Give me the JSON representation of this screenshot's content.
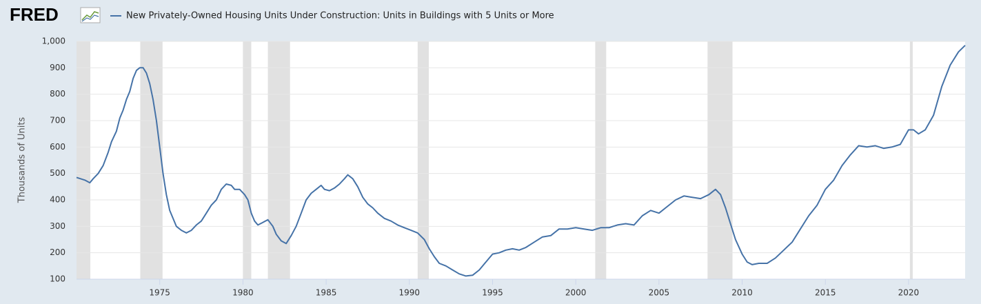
{
  "logo": "FRED",
  "chart_data": {
    "type": "line",
    "y_label": "Thousands of Units",
    "series": [
      {
        "name": "New Privately-Owned Housing Units Under Construction: Units in Buildings with 5 Units or More",
        "color": "#4572a7",
        "values": [
          485,
          475,
          465,
          480,
          500,
          530,
          580,
          620,
          660,
          710,
          740,
          780,
          810,
          860,
          890,
          900,
          900,
          880,
          840,
          780,
          700,
          600,
          500,
          420,
          360,
          330,
          300,
          285,
          275,
          285,
          305,
          320,
          350,
          380,
          400,
          440,
          460,
          455,
          440,
          440,
          420,
          400,
          350,
          320,
          305,
          315,
          325,
          300,
          270,
          245,
          235,
          265,
          300,
          350,
          400,
          425,
          440,
          455,
          440,
          435,
          445,
          460,
          480,
          495,
          480,
          450,
          410,
          385,
          370,
          350,
          330,
          320,
          305,
          295,
          285,
          275,
          250,
          215,
          185,
          160,
          150,
          135,
          120,
          112,
          115,
          135,
          165,
          195,
          200,
          210,
          215,
          210,
          220,
          240,
          260,
          265,
          290,
          290,
          295,
          290,
          285,
          295,
          295,
          305,
          310,
          305,
          340,
          360,
          350,
          375,
          400,
          415,
          410,
          405,
          420,
          440,
          420,
          370,
          310,
          250,
          195,
          165,
          155,
          160,
          160,
          180,
          210,
          240,
          290,
          340,
          380,
          440,
          475,
          530,
          570,
          605,
          600,
          605,
          595,
          600,
          610,
          665,
          665,
          650,
          665,
          720,
          830,
          910,
          960,
          985
        ]
      }
    ],
    "x": [
      1970.0,
      1970.5,
      1970.8,
      1971.0,
      1971.3,
      1971.6,
      1971.9,
      1972.1,
      1972.4,
      1972.6,
      1972.8,
      1973.0,
      1973.2,
      1973.4,
      1973.6,
      1973.8,
      1974.0,
      1974.2,
      1974.4,
      1974.6,
      1974.8,
      1975.0,
      1975.2,
      1975.4,
      1975.6,
      1975.8,
      1976.0,
      1976.3,
      1976.6,
      1976.9,
      1977.2,
      1977.5,
      1977.8,
      1978.1,
      1978.4,
      1978.7,
      1979.0,
      1979.3,
      1979.5,
      1979.8,
      1980.1,
      1980.3,
      1980.5,
      1980.7,
      1980.9,
      1981.2,
      1981.5,
      1981.8,
      1982.0,
      1982.3,
      1982.6,
      1982.9,
      1983.2,
      1983.5,
      1983.8,
      1984.1,
      1984.4,
      1984.7,
      1984.9,
      1985.2,
      1985.5,
      1985.8,
      1986.1,
      1986.3,
      1986.6,
      1986.9,
      1987.2,
      1987.5,
      1987.8,
      1988.1,
      1988.5,
      1988.9,
      1989.3,
      1989.7,
      1990.1,
      1990.5,
      1990.9,
      1991.2,
      1991.5,
      1991.8,
      1992.2,
      1992.6,
      1993.0,
      1993.4,
      1993.8,
      1994.2,
      1994.6,
      1995.0,
      1995.4,
      1995.8,
      1996.2,
      1996.6,
      1997.0,
      1997.5,
      1998.0,
      1998.5,
      1999.0,
      1999.5,
      2000.0,
      2000.5,
      2001.0,
      2001.5,
      2002.0,
      2002.5,
      2003.0,
      2003.5,
      2004.0,
      2004.5,
      2005.0,
      2005.5,
      2006.0,
      2006.5,
      2007.0,
      2007.5,
      2008.0,
      2008.4,
      2008.7,
      2009.0,
      2009.3,
      2009.6,
      2010.0,
      2010.3,
      2010.6,
      2011.0,
      2011.5,
      2012.0,
      2012.5,
      2013.0,
      2013.5,
      2014.0,
      2014.5,
      2015.0,
      2015.5,
      2016.0,
      2016.5,
      2017.0,
      2017.5,
      2018.0,
      2018.5,
      2019.0,
      2019.5,
      2020.0,
      2020.3,
      2020.6,
      2021.0,
      2021.5,
      2022.0,
      2022.5,
      2023.0,
      2023.4
    ],
    "recessions": [
      [
        1969.92,
        1970.83
      ],
      [
        1973.83,
        1975.17
      ],
      [
        1980.0,
        1980.5
      ],
      [
        1981.5,
        1982.83
      ],
      [
        1990.5,
        1991.17
      ],
      [
        2001.17,
        2001.83
      ],
      [
        2007.92,
        2009.42
      ],
      [
        2020.08,
        2020.25
      ]
    ],
    "recession_color": "#e1e1e1",
    "xlim": [
      1970,
      2023.4
    ],
    "xticks": [
      1975,
      1980,
      1985,
      1990,
      1995,
      2000,
      2005,
      2010,
      2015,
      2020
    ],
    "ylim": [
      100,
      1000
    ],
    "yticks": [
      {
        "value": 1000,
        "label": "1,000"
      },
      900,
      800,
      700,
      600,
      500,
      400,
      300,
      200,
      100
    ],
    "grid": true
  }
}
